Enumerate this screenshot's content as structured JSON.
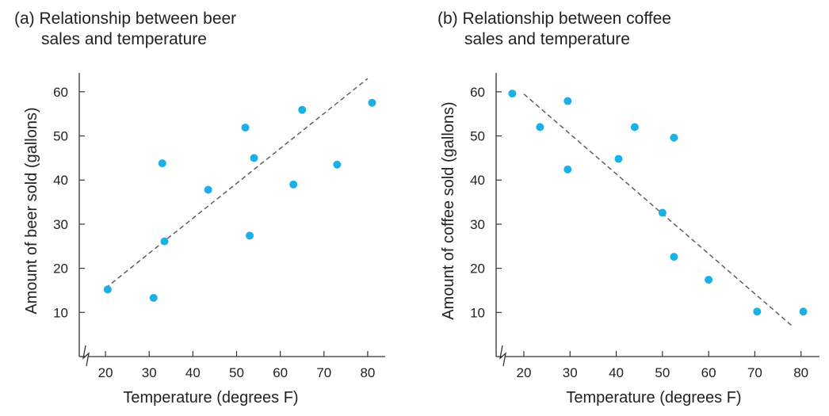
{
  "chart_data": [
    {
      "type": "scatter",
      "title_line1": "(a) Relationship between beer",
      "title_line2": "sales and temperature",
      "xlabel": "Temperature (degrees F)",
      "ylabel": "Amount of beer sold (gallons)",
      "xlim": [
        14,
        84
      ],
      "ylim": [
        0,
        65
      ],
      "x_ticks": [
        20,
        30,
        40,
        50,
        60,
        70,
        80
      ],
      "y_ticks": [
        10,
        20,
        30,
        40,
        50,
        60
      ],
      "axis_break": true,
      "point_color": "#1ab0e8",
      "points": [
        {
          "x": 20.5,
          "y": 15.2
        },
        {
          "x": 31,
          "y": 13.3
        },
        {
          "x": 33,
          "y": 43.8
        },
        {
          "x": 33.5,
          "y": 26.1
        },
        {
          "x": 43.5,
          "y": 37.8
        },
        {
          "x": 52,
          "y": 51.9
        },
        {
          "x": 53,
          "y": 27.4
        },
        {
          "x": 54,
          "y": 45
        },
        {
          "x": 63,
          "y": 39
        },
        {
          "x": 65,
          "y": 55.9
        },
        {
          "x": 73,
          "y": 43.5
        },
        {
          "x": 81,
          "y": 57.5
        }
      ],
      "trendline": {
        "x1": 20,
        "y1": 15.5,
        "x2": 80,
        "y2": 63
      }
    },
    {
      "type": "scatter",
      "title_line1": "(b) Relationship between coffee",
      "title_line2": "sales and temperature",
      "xlabel": "Temperature (degrees F)",
      "ylabel": "Amount of coffee sold (gallons)",
      "xlim": [
        14,
        84
      ],
      "ylim": [
        0,
        65
      ],
      "x_ticks": [
        20,
        30,
        40,
        50,
        60,
        70,
        80
      ],
      "y_ticks": [
        10,
        20,
        30,
        40,
        50,
        60
      ],
      "axis_break": true,
      "point_color": "#1ab0e8",
      "points": [
        {
          "x": 17.5,
          "y": 59.6
        },
        {
          "x": 23.5,
          "y": 52
        },
        {
          "x": 29.5,
          "y": 57.9
        },
        {
          "x": 29.5,
          "y": 42.4
        },
        {
          "x": 40.5,
          "y": 44.8
        },
        {
          "x": 44,
          "y": 52
        },
        {
          "x": 50,
          "y": 32.6
        },
        {
          "x": 52.5,
          "y": 49.6
        },
        {
          "x": 52.5,
          "y": 22.6
        },
        {
          "x": 60,
          "y": 17.4
        },
        {
          "x": 70.5,
          "y": 10.2
        },
        {
          "x": 80.5,
          "y": 10.2
        }
      ],
      "trendline": {
        "x1": 20,
        "y1": 59.5,
        "x2": 78,
        "y2": 7
      }
    }
  ]
}
